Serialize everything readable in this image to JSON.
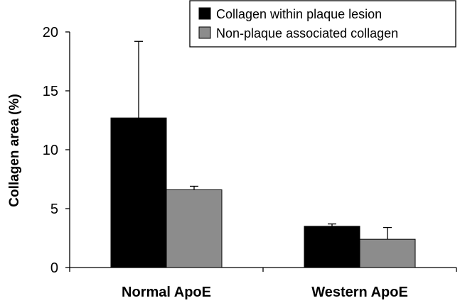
{
  "chart_data": {
    "type": "bar",
    "categories": [
      "Normal ApoE",
      "Western ApoE"
    ],
    "series": [
      {
        "name": "Collagen within plaque lesion",
        "values": [
          12.7,
          3.5
        ],
        "error": [
          6.5,
          0.2
        ],
        "color": "#000000"
      },
      {
        "name": "Non-plaque associated collagen",
        "values": [
          6.6,
          2.4
        ],
        "error": [
          0.3,
          1.0
        ],
        "color": "#8c8c8c"
      }
    ],
    "title": "",
    "xlabel": "",
    "ylabel": "Collagen area (%)",
    "ylim": [
      0,
      20
    ],
    "yticks": [
      "0",
      "5",
      "10",
      "15",
      "20"
    ],
    "grid": false,
    "legend_position": "top-right"
  }
}
